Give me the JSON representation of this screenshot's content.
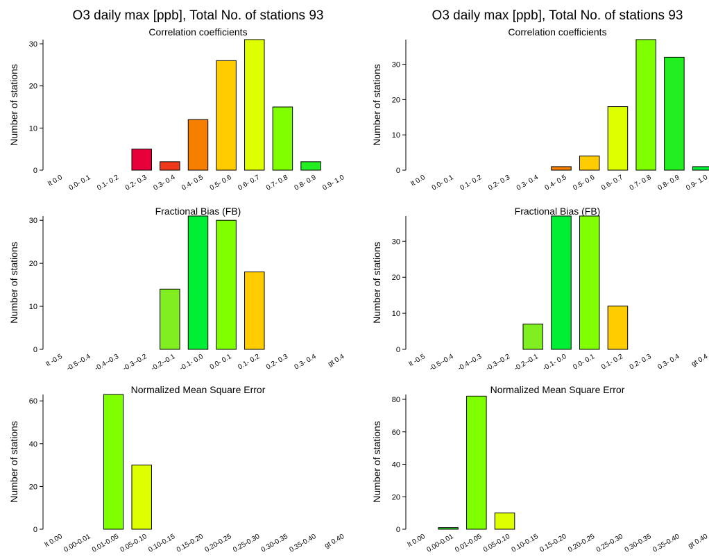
{
  "chart_data": [
    {
      "type": "bar",
      "title": "O3 daily max [ppb], Total No. of stations  93",
      "subtitle": "Correlation coefficients",
      "ylabel": "Number of stations",
      "categories": [
        "lt 0.0",
        "0.0- 0.1",
        "0.1- 0.2",
        "0.2- 0.3",
        "0.3- 0.4",
        "0.4- 0.5",
        "0.5- 0.6",
        "0.6- 0.7",
        "0.7- 0.8",
        "0.8- 0.9",
        "0.9- 1.0"
      ],
      "values": [
        0,
        0,
        0,
        5,
        2,
        12,
        26,
        31,
        15,
        2,
        0
      ],
      "colors": [
        "#e8003a",
        "#e8003a",
        "#e8003a",
        "#e8003a",
        "#ee3a1a",
        "#f77f00",
        "#ffcc00",
        "#ddff00",
        "#80ff00",
        "#22ee22",
        "#22ee22"
      ],
      "ylim": [
        0,
        31
      ],
      "yticks": [
        0,
        10,
        20,
        30
      ]
    },
    {
      "type": "bar",
      "title": "O3 daily max [ppb], Total No. of stations  93",
      "subtitle": "Correlation coefficients",
      "ylabel": "Number of stations",
      "categories": [
        "lt 0.0",
        "0.0- 0.1",
        "0.1- 0.2",
        "0.2- 0.3",
        "0.3- 0.4",
        "0.4- 0.5",
        "0.5- 0.6",
        "0.6- 0.7",
        "0.7- 0.8",
        "0.8- 0.9",
        "0.9- 1.0"
      ],
      "values": [
        0,
        0,
        0,
        0,
        0,
        1,
        4,
        18,
        37,
        32,
        1
      ],
      "colors": [
        "#e8003a",
        "#e8003a",
        "#e8003a",
        "#e8003a",
        "#ee3a1a",
        "#f77f00",
        "#ffcc00",
        "#ddff00",
        "#80ff00",
        "#22ee22",
        "#00ee33"
      ],
      "ylim": [
        0,
        37
      ],
      "yticks": [
        0,
        10,
        20,
        30
      ]
    },
    {
      "type": "bar",
      "title": "Fractional Bias (FB)",
      "ylabel": "Number of stations",
      "categories": [
        "lt -0.5",
        "-0.5--0.4",
        "-0.4--0.3",
        "-0.3--0.2",
        "-0.2--0.1",
        "-0.1- 0.0",
        "0.0- 0.1",
        "0.1- 0.2",
        "0.2- 0.3",
        "0.3- 0.4",
        "gt 0.4"
      ],
      "values": [
        0,
        0,
        0,
        0,
        14,
        31,
        30,
        18,
        0,
        0,
        0
      ],
      "colors": [
        "#e8003a",
        "#f77f00",
        "#ffcc00",
        "#ddff00",
        "#80ee20",
        "#00ee33",
        "#80ff00",
        "#ffcc00",
        "#ddff00",
        "#f77f00",
        "#e8003a"
      ],
      "ylim": [
        0,
        31
      ],
      "yticks": [
        0,
        10,
        20,
        30
      ]
    },
    {
      "type": "bar",
      "title": "Fractional Bias (FB)",
      "ylabel": "Number of stations",
      "categories": [
        "lt -0.5",
        "-0.5--0.4",
        "-0.4--0.3",
        "-0.3--0.2",
        "-0.2--0.1",
        "-0.1- 0.0",
        "0.0- 0.1",
        "0.1- 0.2",
        "0.2- 0.3",
        "0.3- 0.4",
        "gt 0.4"
      ],
      "values": [
        0,
        0,
        0,
        0,
        7,
        37,
        37,
        12,
        0,
        0,
        0
      ],
      "colors": [
        "#e8003a",
        "#f77f00",
        "#ffcc00",
        "#ddff00",
        "#80ee20",
        "#00ee33",
        "#80ff00",
        "#ffcc00",
        "#ddff00",
        "#f77f00",
        "#e8003a"
      ],
      "ylim": [
        0,
        37
      ],
      "yticks": [
        0,
        10,
        20,
        30
      ]
    },
    {
      "type": "bar",
      "title": "Normalized Mean Square Error",
      "ylabel": "Number of stations",
      "categories": [
        "lt 0.00",
        "0.00-0.01",
        "0.01-0.05",
        "0.05-0.10",
        "0.10-0.15",
        "0.15-0.20",
        "0.20-0.25",
        "0.25-0.30",
        "0.30-0.35",
        "0.35-0.40",
        "gt 0.40"
      ],
      "values": [
        0,
        0,
        63,
        30,
        0,
        0,
        0,
        0,
        0,
        0,
        0
      ],
      "colors": [
        "#00ee33",
        "#22dd22",
        "#80ff00",
        "#ddff00",
        "#ffcc00",
        "#f77f00",
        "#ee3a1a",
        "#e8003a",
        "#e8003a",
        "#e8003a",
        "#e8003a"
      ],
      "ylim": [
        0,
        63
      ],
      "yticks": [
        0,
        20,
        40,
        60
      ]
    },
    {
      "type": "bar",
      "title": "Normalized Mean Square Error",
      "ylabel": "Number of stations",
      "categories": [
        "lt 0.00",
        "0.00-0.01",
        "0.01-0.05",
        "0.05-0.10",
        "0.10-0.15",
        "0.15-0.20",
        "0.20-0.25",
        "0.25-0.30",
        "0.30-0.35",
        "0.35-0.40",
        "gt 0.40"
      ],
      "values": [
        0,
        1,
        82,
        10,
        0,
        0,
        0,
        0,
        0,
        0,
        0
      ],
      "colors": [
        "#00ee33",
        "#22dd22",
        "#80ff00",
        "#ddff00",
        "#ffcc00",
        "#f77f00",
        "#ee3a1a",
        "#e8003a",
        "#e8003a",
        "#e8003a",
        "#e8003a"
      ],
      "ylim": [
        0,
        83
      ],
      "yticks": [
        0,
        20,
        40,
        60,
        80
      ]
    }
  ]
}
